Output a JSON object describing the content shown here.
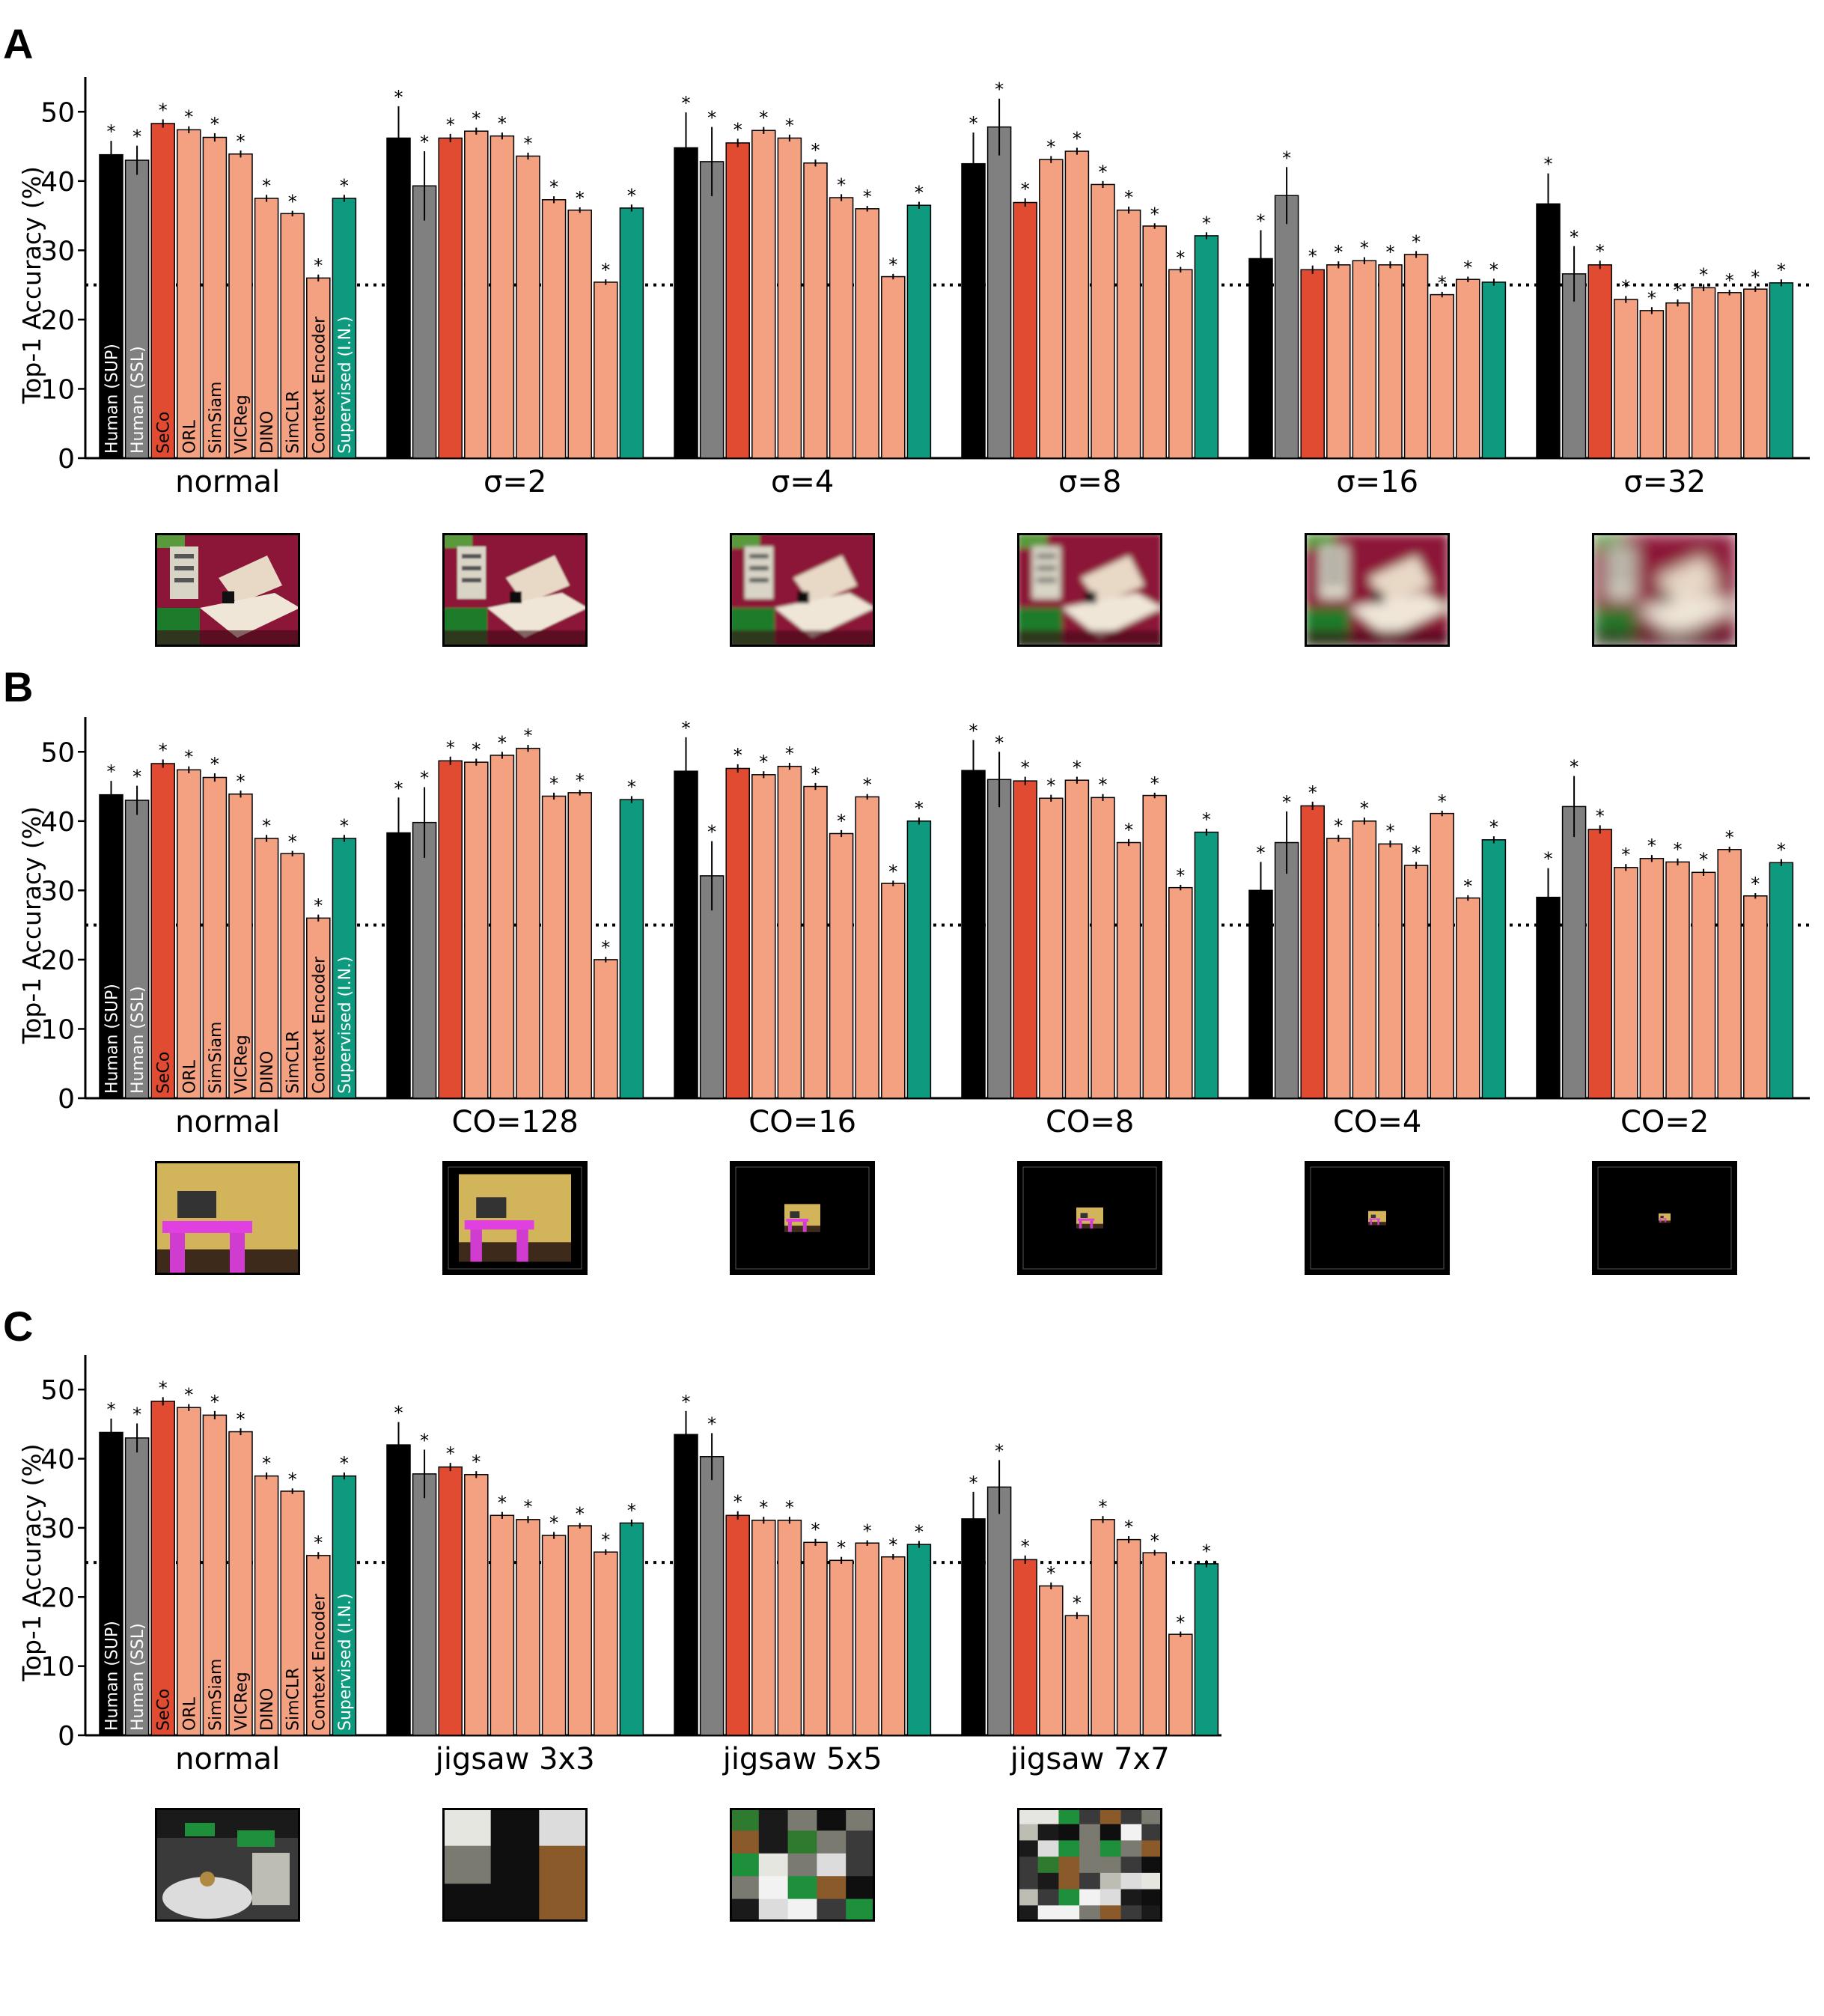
{
  "models": [
    "Human (SUP)",
    "Human (SSL)",
    "SeCo",
    "ORL",
    "SimSiam",
    "VICReg",
    "DINO",
    "SimCLR",
    "Context Encoder",
    "Supervised (I.N.)"
  ],
  "significance_marker": "*",
  "colors": {
    "Human (SUP)": "#000000",
    "Human (SSL)": "#808080",
    "SeCo": "#e04b32",
    "others": "#f4a182",
    "Supervised (I.N.)": "#0d9a7f",
    "chance_line": "#000000"
  },
  "chart_data": [
    {
      "panel": "A",
      "type": "bar",
      "ylabel": "Top-1 Accuracy (%)",
      "yticks": [
        0,
        10,
        20,
        30,
        40,
        50
      ],
      "ylim": [
        0,
        55
      ],
      "chance_level": 25,
      "categories": [
        "normal",
        "σ=2",
        "σ=4",
        "σ=8",
        "σ=16",
        "σ=32"
      ],
      "values": [
        [
          43.8,
          43.0,
          48.3,
          47.4,
          46.3,
          43.9,
          37.5,
          35.3,
          26.0,
          37.5
        ],
        [
          46.2,
          39.3,
          46.2,
          47.2,
          46.5,
          43.6,
          37.3,
          35.8,
          25.4,
          36.1
        ],
        [
          44.8,
          42.8,
          45.5,
          47.3,
          46.2,
          42.6,
          37.6,
          36.0,
          26.2,
          36.5
        ],
        [
          42.5,
          47.8,
          36.9,
          43.1,
          44.3,
          39.5,
          35.8,
          33.5,
          27.2,
          32.1
        ],
        [
          28.8,
          37.9,
          27.2,
          27.9,
          28.5,
          27.9,
          29.4,
          23.6,
          25.8,
          25.4
        ],
        [
          36.7,
          26.6,
          27.9,
          22.9,
          21.3,
          22.4,
          24.6,
          23.9,
          24.4,
          25.3
        ]
      ],
      "errors": [
        [
          2.0,
          2.1,
          0.6,
          0.5,
          0.6,
          0.5,
          0.5,
          0.4,
          0.5,
          0.5
        ],
        [
          4.6,
          5.0,
          0.6,
          0.5,
          0.5,
          0.5,
          0.5,
          0.4,
          0.4,
          0.5
        ],
        [
          5.1,
          5.0,
          0.6,
          0.5,
          0.5,
          0.5,
          0.5,
          0.4,
          0.4,
          0.5
        ],
        [
          4.5,
          4.1,
          0.6,
          0.5,
          0.5,
          0.5,
          0.5,
          0.4,
          0.4,
          0.5
        ],
        [
          4.1,
          4.1,
          0.6,
          0.5,
          0.5,
          0.5,
          0.5,
          0.4,
          0.4,
          0.5
        ],
        [
          4.4,
          4.0,
          0.6,
          0.5,
          0.5,
          0.5,
          0.5,
          0.4,
          0.4,
          0.5
        ]
      ]
    },
    {
      "panel": "B",
      "type": "bar",
      "ylabel": "Top-1 Accuracy (%)",
      "yticks": [
        0,
        10,
        20,
        30,
        40,
        50
      ],
      "ylim": [
        0,
        55
      ],
      "chance_level": 25,
      "categories": [
        "normal",
        "CO=128",
        "CO=16",
        "CO=8",
        "CO=4",
        "CO=2"
      ],
      "values": [
        [
          43.8,
          43.0,
          48.3,
          47.4,
          46.3,
          43.9,
          37.5,
          35.3,
          26.0,
          37.5
        ],
        [
          38.3,
          39.8,
          48.7,
          48.5,
          49.5,
          50.5,
          43.6,
          44.1,
          20.0,
          43.1
        ],
        [
          47.2,
          32.1,
          47.6,
          46.7,
          47.9,
          45.0,
          38.2,
          43.5,
          31.0,
          40.0
        ],
        [
          47.3,
          46.0,
          45.8,
          43.3,
          45.9,
          43.4,
          36.9,
          43.7,
          30.4,
          38.4
        ],
        [
          30.0,
          36.9,
          42.2,
          37.5,
          40.0,
          36.7,
          33.6,
          41.1,
          28.9,
          37.3
        ],
        [
          29.0,
          42.1,
          38.8,
          33.3,
          34.6,
          34.1,
          32.6,
          35.9,
          29.2,
          34.0
        ]
      ],
      "errors": [
        [
          2.0,
          2.1,
          0.6,
          0.5,
          0.6,
          0.5,
          0.5,
          0.4,
          0.5,
          0.5
        ],
        [
          5.1,
          5.1,
          0.6,
          0.5,
          0.5,
          0.5,
          0.5,
          0.4,
          0.4,
          0.5
        ],
        [
          4.9,
          5.0,
          0.6,
          0.5,
          0.5,
          0.5,
          0.5,
          0.4,
          0.4,
          0.5
        ],
        [
          4.4,
          4.0,
          0.6,
          0.5,
          0.5,
          0.5,
          0.5,
          0.4,
          0.4,
          0.5
        ],
        [
          4.1,
          4.5,
          0.6,
          0.5,
          0.5,
          0.5,
          0.5,
          0.4,
          0.4,
          0.5
        ],
        [
          4.2,
          4.4,
          0.6,
          0.5,
          0.5,
          0.5,
          0.5,
          0.4,
          0.4,
          0.5
        ]
      ]
    },
    {
      "panel": "C",
      "type": "bar",
      "ylabel": "Top-1 Accuracy (%)",
      "yticks": [
        0,
        10,
        20,
        30,
        40,
        50
      ],
      "ylim": [
        0,
        55
      ],
      "chance_level": 25,
      "categories": [
        "normal",
        "jigsaw 3x3",
        "jigsaw 5x5",
        "jigsaw 7x7"
      ],
      "values": [
        [
          43.8,
          43.0,
          48.3,
          47.4,
          46.3,
          43.9,
          37.5,
          35.3,
          26.0,
          37.5
        ],
        [
          42.0,
          37.8,
          38.8,
          37.7,
          31.8,
          31.2,
          28.9,
          30.3,
          26.5,
          30.7
        ],
        [
          43.5,
          40.3,
          31.8,
          31.1,
          31.1,
          27.9,
          25.3,
          27.8,
          25.8,
          27.6
        ],
        [
          31.3,
          35.9,
          25.4,
          21.6,
          17.3,
          31.2,
          28.3,
          26.4,
          14.6,
          24.8
        ]
      ],
      "errors": [
        [
          2.0,
          2.1,
          0.6,
          0.5,
          0.6,
          0.5,
          0.5,
          0.4,
          0.5,
          0.5
        ],
        [
          3.3,
          3.5,
          0.6,
          0.5,
          0.5,
          0.5,
          0.5,
          0.4,
          0.4,
          0.5
        ],
        [
          3.4,
          3.4,
          0.6,
          0.5,
          0.5,
          0.5,
          0.5,
          0.4,
          0.4,
          0.5
        ],
        [
          3.9,
          3.9,
          0.6,
          0.5,
          0.5,
          0.5,
          0.5,
          0.4,
          0.4,
          0.5
        ]
      ]
    }
  ],
  "thumbnails": {
    "A": [
      "normal",
      "blur-2",
      "blur-4",
      "blur-8",
      "blur-16",
      "blur-32"
    ],
    "B": [
      "normal",
      "crop-128",
      "crop-16",
      "crop-8",
      "crop-4",
      "crop-2"
    ],
    "C": [
      "normal",
      "jigsaw-3",
      "jigsaw-5",
      "jigsaw-7"
    ]
  }
}
